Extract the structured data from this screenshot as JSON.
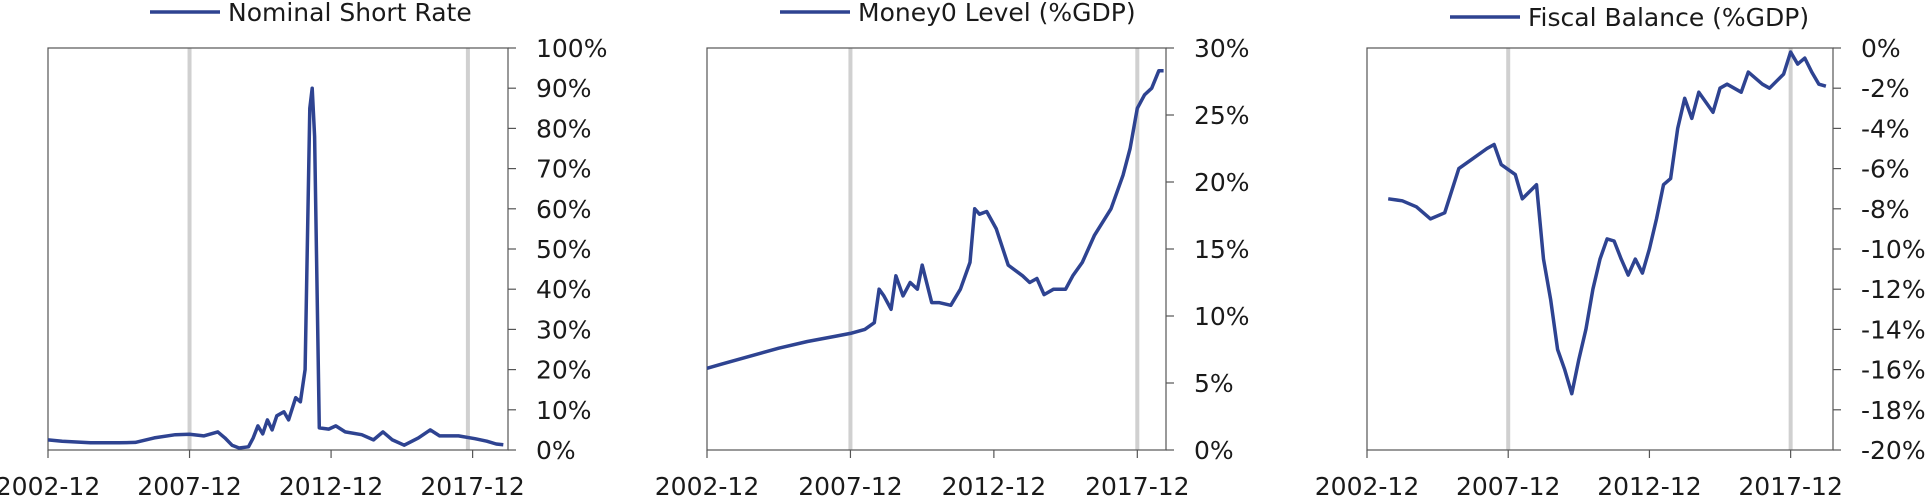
{
  "chart_data": [
    {
      "type": "line",
      "title": "",
      "series": [
        {
          "name": "Nominal Short Rate",
          "color": "#2e4391",
          "points": [
            [
              "2002-12",
              2.5
            ],
            [
              "2003-06",
              2.2
            ],
            [
              "2004-06",
              1.8
            ],
            [
              "2005-06",
              1.8
            ],
            [
              "2006-01",
              1.9
            ],
            [
              "2006-09",
              3.0
            ],
            [
              "2007-06",
              3.8
            ],
            [
              "2007-12",
              3.9
            ],
            [
              "2008-06",
              3.5
            ],
            [
              "2008-12",
              4.5
            ],
            [
              "2009-03",
              3.0
            ],
            [
              "2009-06",
              1.2
            ],
            [
              "2009-09",
              0.5
            ],
            [
              "2010-01",
              0.8
            ],
            [
              "2010-03",
              3.0
            ],
            [
              "2010-05",
              6.0
            ],
            [
              "2010-07",
              4.0
            ],
            [
              "2010-09",
              7.5
            ],
            [
              "2010-11",
              5.0
            ],
            [
              "2011-01",
              8.5
            ],
            [
              "2011-04",
              9.5
            ],
            [
              "2011-06",
              7.5
            ],
            [
              "2011-09",
              13.0
            ],
            [
              "2011-11",
              12.0
            ],
            [
              "2012-01",
              20.0
            ],
            [
              "2012-03",
              85.0
            ],
            [
              "2012-04",
              90.0
            ],
            [
              "2012-05",
              78.0
            ],
            [
              "2012-07",
              5.5
            ],
            [
              "2012-11",
              5.2
            ],
            [
              "2013-02",
              6.0
            ],
            [
              "2013-06",
              4.5
            ],
            [
              "2014-01",
              3.8
            ],
            [
              "2014-06",
              2.5
            ],
            [
              "2014-10",
              4.5
            ],
            [
              "2015-02",
              2.5
            ],
            [
              "2015-07",
              1.2
            ],
            [
              "2016-01",
              3.0
            ],
            [
              "2016-06",
              5.0
            ],
            [
              "2016-10",
              3.5
            ],
            [
              "2017-06",
              3.5
            ],
            [
              "2018-01",
              2.8
            ],
            [
              "2018-06",
              2.2
            ],
            [
              "2018-10",
              1.5
            ],
            [
              "2019-01",
              1.3
            ]
          ]
        }
      ],
      "xlim": [
        "2002-12",
        "2019-03"
      ],
      "x_ticks": [
        "2002-12",
        "2007-12",
        "2012-12",
        "2017-12"
      ],
      "ylim": [
        0,
        100
      ],
      "y_ticks": [
        "0%",
        "10%",
        "20%",
        "30%",
        "40%",
        "50%",
        "60%",
        "70%",
        "80%",
        "90%",
        "100%"
      ],
      "y_axis_side": "right",
      "vertical_markers": [
        "2007-12",
        "2017-10"
      ],
      "legend_position": "top-center"
    },
    {
      "type": "line",
      "title": "",
      "series": [
        {
          "name": "Money0 Level (%GDP)",
          "color": "#2e4391",
          "points": [
            [
              "2002-12",
              6.1
            ],
            [
              "2003-06",
              6.4
            ],
            [
              "2004-06",
              7.0
            ],
            [
              "2005-06",
              7.6
            ],
            [
              "2006-06",
              8.1
            ],
            [
              "2007-06",
              8.5
            ],
            [
              "2007-12",
              8.7
            ],
            [
              "2008-06",
              9.0
            ],
            [
              "2008-10",
              9.5
            ],
            [
              "2008-12",
              12.0
            ],
            [
              "2009-02",
              11.5
            ],
            [
              "2009-05",
              10.5
            ],
            [
              "2009-07",
              13.0
            ],
            [
              "2009-10",
              11.5
            ],
            [
              "2010-01",
              12.5
            ],
            [
              "2010-04",
              12.0
            ],
            [
              "2010-06",
              13.8
            ],
            [
              "2010-10",
              11.0
            ],
            [
              "2011-01",
              11.0
            ],
            [
              "2011-06",
              10.8
            ],
            [
              "2011-10",
              12.0
            ],
            [
              "2012-02",
              14.0
            ],
            [
              "2012-04",
              18.0
            ],
            [
              "2012-06",
              17.6
            ],
            [
              "2012-09",
              17.8
            ],
            [
              "2013-01",
              16.5
            ],
            [
              "2013-06",
              13.8
            ],
            [
              "2013-12",
              13.0
            ],
            [
              "2014-03",
              12.5
            ],
            [
              "2014-06",
              12.8
            ],
            [
              "2014-09",
              11.6
            ],
            [
              "2015-01",
              12.0
            ],
            [
              "2015-06",
              12.0
            ],
            [
              "2015-09",
              13.0
            ],
            [
              "2016-01",
              14.0
            ],
            [
              "2016-06",
              16.0
            ],
            [
              "2017-01",
              18.0
            ],
            [
              "2017-06",
              20.5
            ],
            [
              "2017-09",
              22.5
            ],
            [
              "2017-12",
              25.5
            ],
            [
              "2018-03",
              26.5
            ],
            [
              "2018-06",
              27.0
            ],
            [
              "2018-09",
              28.3
            ],
            [
              "2018-11",
              28.3
            ]
          ]
        }
      ],
      "xlim": [
        "2002-12",
        "2018-12"
      ],
      "x_ticks": [
        "2002-12",
        "2007-12",
        "2012-12",
        "2017-12"
      ],
      "ylim": [
        0,
        30
      ],
      "y_ticks": [
        "0%",
        "5%",
        "10%",
        "15%",
        "20%",
        "25%",
        "30%"
      ],
      "y_axis_side": "right",
      "vertical_markers": [
        "2007-12",
        "2017-12"
      ],
      "legend_position": "top-center"
    },
    {
      "type": "line",
      "title": "",
      "series": [
        {
          "name": "Fiscal Balance (%GDP)",
          "color": "#2e4391",
          "points": [
            [
              "2003-09",
              -7.5
            ],
            [
              "2004-03",
              -7.6
            ],
            [
              "2004-09",
              -7.9
            ],
            [
              "2005-03",
              -8.5
            ],
            [
              "2005-09",
              -8.2
            ],
            [
              "2006-03",
              -6.0
            ],
            [
              "2006-09",
              -5.5
            ],
            [
              "2007-03",
              -5.0
            ],
            [
              "2007-06",
              -4.8
            ],
            [
              "2007-09",
              -5.8
            ],
            [
              "2008-03",
              -6.3
            ],
            [
              "2008-06",
              -7.5
            ],
            [
              "2008-12",
              -6.8
            ],
            [
              "2009-03",
              -10.5
            ],
            [
              "2009-06",
              -12.5
            ],
            [
              "2009-09",
              -15.0
            ],
            [
              "2009-12",
              -16.0
            ],
            [
              "2010-03",
              -17.2
            ],
            [
              "2010-06",
              -15.5
            ],
            [
              "2010-09",
              -14.0
            ],
            [
              "2010-12",
              -12.0
            ],
            [
              "2011-03",
              -10.5
            ],
            [
              "2011-06",
              -9.5
            ],
            [
              "2011-09",
              -9.6
            ],
            [
              "2011-12",
              -10.5
            ],
            [
              "2012-03",
              -11.3
            ],
            [
              "2012-06",
              -10.5
            ],
            [
              "2012-09",
              -11.2
            ],
            [
              "2012-12",
              -10.0
            ],
            [
              "2013-03",
              -8.5
            ],
            [
              "2013-06",
              -6.8
            ],
            [
              "2013-09",
              -6.5
            ],
            [
              "2013-12",
              -4.0
            ],
            [
              "2014-03",
              -2.5
            ],
            [
              "2014-06",
              -3.5
            ],
            [
              "2014-09",
              -2.2
            ],
            [
              "2015-03",
              -3.2
            ],
            [
              "2015-06",
              -2.0
            ],
            [
              "2015-09",
              -1.8
            ],
            [
              "2016-03",
              -2.2
            ],
            [
              "2016-06",
              -1.2
            ],
            [
              "2016-12",
              -1.8
            ],
            [
              "2017-03",
              -2.0
            ],
            [
              "2017-09",
              -1.3
            ],
            [
              "2017-12",
              -0.2
            ],
            [
              "2018-03",
              -0.8
            ],
            [
              "2018-06",
              -0.5
            ],
            [
              "2018-09",
              -1.2
            ],
            [
              "2018-12",
              -1.8
            ],
            [
              "2019-03",
              -1.9
            ]
          ]
        }
      ],
      "xlim": [
        "2002-12",
        "2019-06"
      ],
      "x_ticks": [
        "2002-12",
        "2007-12",
        "2012-12",
        "2017-12"
      ],
      "ylim": [
        -20,
        0
      ],
      "y_ticks": [
        "-20%",
        "-18%",
        "-16%",
        "-14%",
        "-12%",
        "-10%",
        "-8%",
        "-6%",
        "-4%",
        "-2%",
        "0%"
      ],
      "y_axis_side": "right",
      "vertical_markers": [
        "2007-12",
        "2017-12"
      ],
      "legend_position": "top-center"
    }
  ]
}
